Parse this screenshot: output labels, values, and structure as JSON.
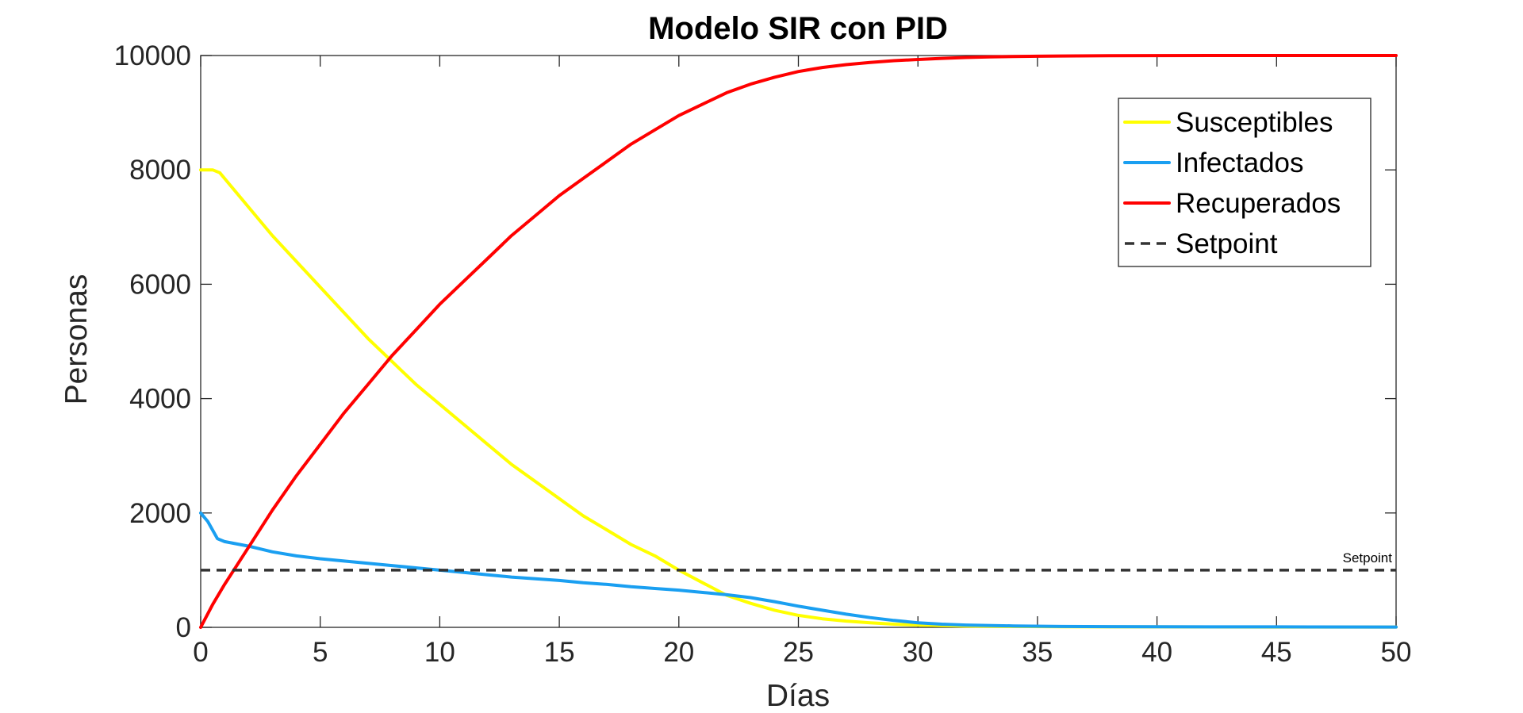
{
  "chart_data": {
    "type": "line",
    "title": "Modelo SIR con PID",
    "xlabel": "Días",
    "ylabel": "Personas",
    "xlim": [
      0,
      50
    ],
    "ylim": [
      0,
      10000
    ],
    "xticks": [
      "0",
      "5",
      "10",
      "15",
      "20",
      "25",
      "30",
      "35",
      "40",
      "45",
      "50"
    ],
    "yticks": [
      "0",
      "2000",
      "4000",
      "6000",
      "8000",
      "10000"
    ],
    "grid": false,
    "legend_position": "top-right",
    "series": [
      {
        "name": "Susceptibles",
        "color": "#ffff00",
        "style": "solid",
        "x": [
          0,
          0.5,
          0.8,
          1,
          2,
          3,
          4,
          5,
          6,
          7,
          8,
          9,
          10,
          11,
          12,
          13,
          14,
          15,
          16,
          17,
          18,
          19,
          20,
          21,
          22,
          23,
          24,
          25,
          26,
          27,
          28,
          29,
          30,
          31,
          32,
          34,
          36,
          40,
          45,
          50
        ],
        "y": [
          8000,
          8000,
          7950,
          7850,
          7350,
          6850,
          6400,
          5950,
          5500,
          5050,
          4650,
          4250,
          3900,
          3550,
          3200,
          2850,
          2550,
          2250,
          1950,
          1700,
          1450,
          1250,
          1000,
          780,
          560,
          420,
          300,
          210,
          150,
          110,
          80,
          55,
          40,
          30,
          22,
          15,
          10,
          8,
          6,
          5
        ]
      },
      {
        "name": "Infectados",
        "color": "#1a9ff1",
        "style": "solid",
        "x": [
          0,
          0.3,
          0.7,
          1,
          2,
          3,
          4,
          5,
          6,
          7,
          8,
          9,
          10,
          11,
          12,
          13,
          14,
          15,
          16,
          17,
          18,
          19,
          20,
          21,
          22,
          23,
          24,
          25,
          26,
          27,
          28,
          29,
          30,
          31,
          32,
          34,
          36,
          40,
          45,
          50
        ],
        "y": [
          2000,
          1850,
          1550,
          1500,
          1420,
          1320,
          1250,
          1200,
          1160,
          1120,
          1080,
          1040,
          1000,
          960,
          920,
          880,
          850,
          820,
          780,
          750,
          710,
          680,
          650,
          610,
          570,
          520,
          450,
          370,
          300,
          230,
          170,
          120,
          80,
          55,
          40,
          25,
          15,
          10,
          8,
          6
        ]
      },
      {
        "name": "Recuperados",
        "color": "#ff0000",
        "style": "solid",
        "x": [
          0,
          0.5,
          1,
          2,
          3,
          4,
          5,
          6,
          7,
          8,
          9,
          10,
          11,
          12,
          13,
          14,
          15,
          16,
          17,
          18,
          19,
          20,
          21,
          22,
          23,
          24,
          25,
          26,
          27,
          28,
          29,
          30,
          31,
          32,
          33,
          34,
          35,
          36,
          38,
          40,
          45,
          50
        ],
        "y": [
          0,
          400,
          750,
          1400,
          2050,
          2650,
          3200,
          3750,
          4250,
          4750,
          5200,
          5650,
          6050,
          6450,
          6850,
          7200,
          7550,
          7850,
          8150,
          8450,
          8700,
          8950,
          9150,
          9350,
          9500,
          9620,
          9720,
          9790,
          9840,
          9880,
          9910,
          9930,
          9950,
          9965,
          9975,
          9982,
          9988,
          9992,
          9996,
          9998,
          10000,
          10000
        ]
      },
      {
        "name": "Setpoint",
        "color": "#333333",
        "style": "dashed",
        "x": [
          0,
          50
        ],
        "y": [
          1000,
          1000
        ]
      }
    ],
    "annotations": [
      {
        "text": "Setpoint",
        "x": 50,
        "y": 1000
      }
    ]
  }
}
